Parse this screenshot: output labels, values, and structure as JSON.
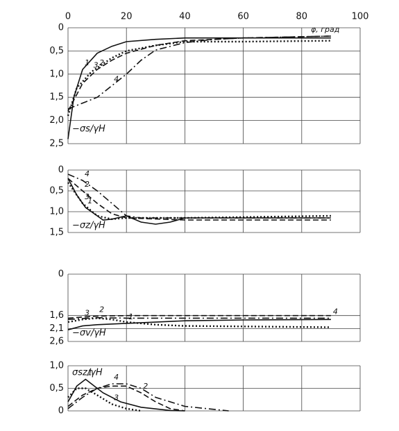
{
  "chart_data": [
    {
      "type": "line",
      "ylabel": "−σs/γH",
      "annotation": "φ, град",
      "xlim": [
        0,
        100
      ],
      "xticks": [
        0,
        20,
        40,
        60,
        80,
        100
      ],
      "xtick_labels": true,
      "ylim": [
        2.5,
        0
      ],
      "yticks": [
        0,
        {
          "value": 0.5,
          "label": "0,5"
        },
        {
          "value": 1.0,
          "label": "1,0"
        },
        {
          "value": 1.5,
          "label": "1,5"
        },
        {
          "value": 2.0,
          "label": "2,0"
        },
        {
          "value": 2.5,
          "label": "2,5"
        }
      ],
      "grid": true,
      "series": [
        {
          "name": "1",
          "color": "#111",
          "dash": "solid",
          "x": [
            0,
            2,
            5,
            10,
            15,
            20,
            30,
            40,
            60,
            90
          ],
          "values": [
            2.4,
            1.5,
            0.9,
            0.55,
            0.4,
            0.3,
            0.25,
            0.22,
            0.22,
            0.22
          ]
        },
        {
          "name": "2",
          "color": "#111",
          "dash": "dashed",
          "x": [
            0,
            5,
            10,
            15,
            20,
            30,
            40,
            60,
            90
          ],
          "values": [
            1.8,
            1.2,
            0.9,
            0.7,
            0.55,
            0.38,
            0.28,
            0.22,
            0.18
          ]
        },
        {
          "name": "3",
          "color": "#111",
          "dash": "dotted",
          "x": [
            0,
            3,
            8,
            15,
            20,
            30,
            40,
            60,
            90
          ],
          "values": [
            1.9,
            1.3,
            0.95,
            0.65,
            0.5,
            0.38,
            0.3,
            0.3,
            0.28
          ]
        },
        {
          "name": "4",
          "color": "#111",
          "dash": "dashdot",
          "x": [
            0,
            10,
            15,
            20,
            25,
            30,
            40,
            50,
            60,
            90
          ],
          "values": [
            1.75,
            1.5,
            1.25,
            1.0,
            0.7,
            0.48,
            0.32,
            0.25,
            0.22,
            0.18
          ]
        }
      ]
    },
    {
      "type": "line",
      "ylabel": "−σz/γH",
      "xlim": [
        0,
        100
      ],
      "xticks": [
        0,
        20,
        40,
        60,
        80,
        100
      ],
      "xtick_labels": false,
      "ylim": [
        1.5,
        0
      ],
      "yticks": [
        0,
        {
          "value": 0.5,
          "label": "0,5"
        },
        {
          "value": 1.0,
          "label": "1,0"
        },
        {
          "value": 1.5,
          "label": "1,5"
        }
      ],
      "grid": true,
      "series": [
        {
          "name": "1",
          "color": "#111",
          "dash": "solid",
          "x": [
            0,
            3,
            6,
            10,
            12,
            15,
            20,
            25,
            30,
            35,
            40,
            90
          ],
          "values": [
            0.2,
            0.6,
            0.9,
            1.1,
            1.2,
            1.18,
            1.1,
            1.25,
            1.3,
            1.25,
            1.15,
            1.15
          ]
        },
        {
          "name": "2",
          "color": "#111",
          "dash": "dashed",
          "x": [
            0,
            5,
            10,
            15,
            20,
            40,
            90
          ],
          "values": [
            0.2,
            0.5,
            0.8,
            1.05,
            1.15,
            1.2,
            1.2
          ]
        },
        {
          "name": "3",
          "color": "#111",
          "dash": "dotted",
          "x": [
            0,
            5,
            10,
            15,
            20,
            40,
            90
          ],
          "values": [
            0.3,
            0.8,
            1.1,
            1.18,
            1.15,
            1.15,
            1.1
          ]
        },
        {
          "name": "4",
          "color": "#111",
          "dash": "dashdot",
          "x": [
            0,
            5,
            10,
            15,
            20,
            25,
            40,
            90
          ],
          "values": [
            0.1,
            0.25,
            0.5,
            0.8,
            1.1,
            1.15,
            1.15,
            1.15
          ]
        }
      ]
    },
    {
      "type": "line",
      "ylabel": "−σv/γH",
      "xlim": [
        0,
        100
      ],
      "xticks": [
        0,
        20,
        40,
        60,
        80,
        100
      ],
      "xtick_labels": false,
      "ylim": [
        2.6,
        0
      ],
      "yticks": [
        0,
        {
          "value": 1.6,
          "label": "1,6"
        },
        {
          "value": 2.1,
          "label": "2,1"
        },
        {
          "value": 2.6,
          "label": "2,6"
        }
      ],
      "grid": true,
      "series": [
        {
          "name": "1",
          "color": "#111",
          "dash": "solid",
          "x": [
            0,
            5,
            10,
            20,
            40,
            60,
            90
          ],
          "values": [
            2.15,
            2.0,
            1.95,
            1.9,
            1.8,
            1.77,
            1.75
          ]
        },
        {
          "name": "2",
          "color": "#111",
          "dash": "dashed",
          "x": [
            0,
            10,
            20,
            90
          ],
          "values": [
            1.7,
            1.62,
            1.6,
            1.6
          ]
        },
        {
          "name": "3",
          "color": "#111",
          "dash": "dotted",
          "x": [
            0,
            5,
            10,
            15,
            20,
            30,
            40,
            90
          ],
          "values": [
            1.85,
            1.75,
            1.7,
            1.75,
            1.85,
            1.95,
            2.0,
            2.05
          ]
        },
        {
          "name": "4",
          "color": "#111",
          "dash": "dashdot",
          "x": [
            0,
            10,
            20,
            40,
            90
          ],
          "values": [
            1.75,
            1.68,
            1.7,
            1.7,
            1.7
          ]
        }
      ]
    },
    {
      "type": "line",
      "ylabel": "σsz/γH",
      "xlim": [
        0,
        100
      ],
      "xticks": [
        0,
        20,
        40,
        60,
        80,
        100
      ],
      "xtick_labels": false,
      "ylim": [
        0,
        1.0
      ],
      "yticks": [
        0,
        {
          "value": 0.5,
          "label": "0,5"
        },
        {
          "value": 1.0,
          "label": "1,0"
        }
      ],
      "grid": true,
      "series": [
        {
          "name": "1",
          "color": "#111",
          "dash": "solid",
          "x": [
            0,
            3,
            6,
            8,
            12,
            18,
            25,
            35,
            40
          ],
          "values": [
            0.2,
            0.55,
            0.7,
            0.6,
            0.4,
            0.2,
            0.08,
            0.01,
            0
          ]
        },
        {
          "name": "2",
          "color": "#111",
          "dash": "dashed",
          "x": [
            0,
            5,
            10,
            15,
            20,
            25,
            30,
            35,
            40
          ],
          "values": [
            0.1,
            0.35,
            0.5,
            0.55,
            0.55,
            0.4,
            0.2,
            0.05,
            0
          ]
        },
        {
          "name": "3",
          "color": "#111",
          "dash": "dotted",
          "x": [
            0,
            3,
            6,
            10,
            15,
            20,
            25
          ],
          "values": [
            0.3,
            0.5,
            0.5,
            0.35,
            0.15,
            0.05,
            0
          ]
        },
        {
          "name": "4",
          "color": "#111",
          "dash": "dashdot",
          "x": [
            0,
            5,
            10,
            15,
            20,
            25,
            30,
            40,
            55
          ],
          "values": [
            0.05,
            0.3,
            0.5,
            0.6,
            0.6,
            0.5,
            0.3,
            0.1,
            0
          ]
        }
      ]
    }
  ]
}
